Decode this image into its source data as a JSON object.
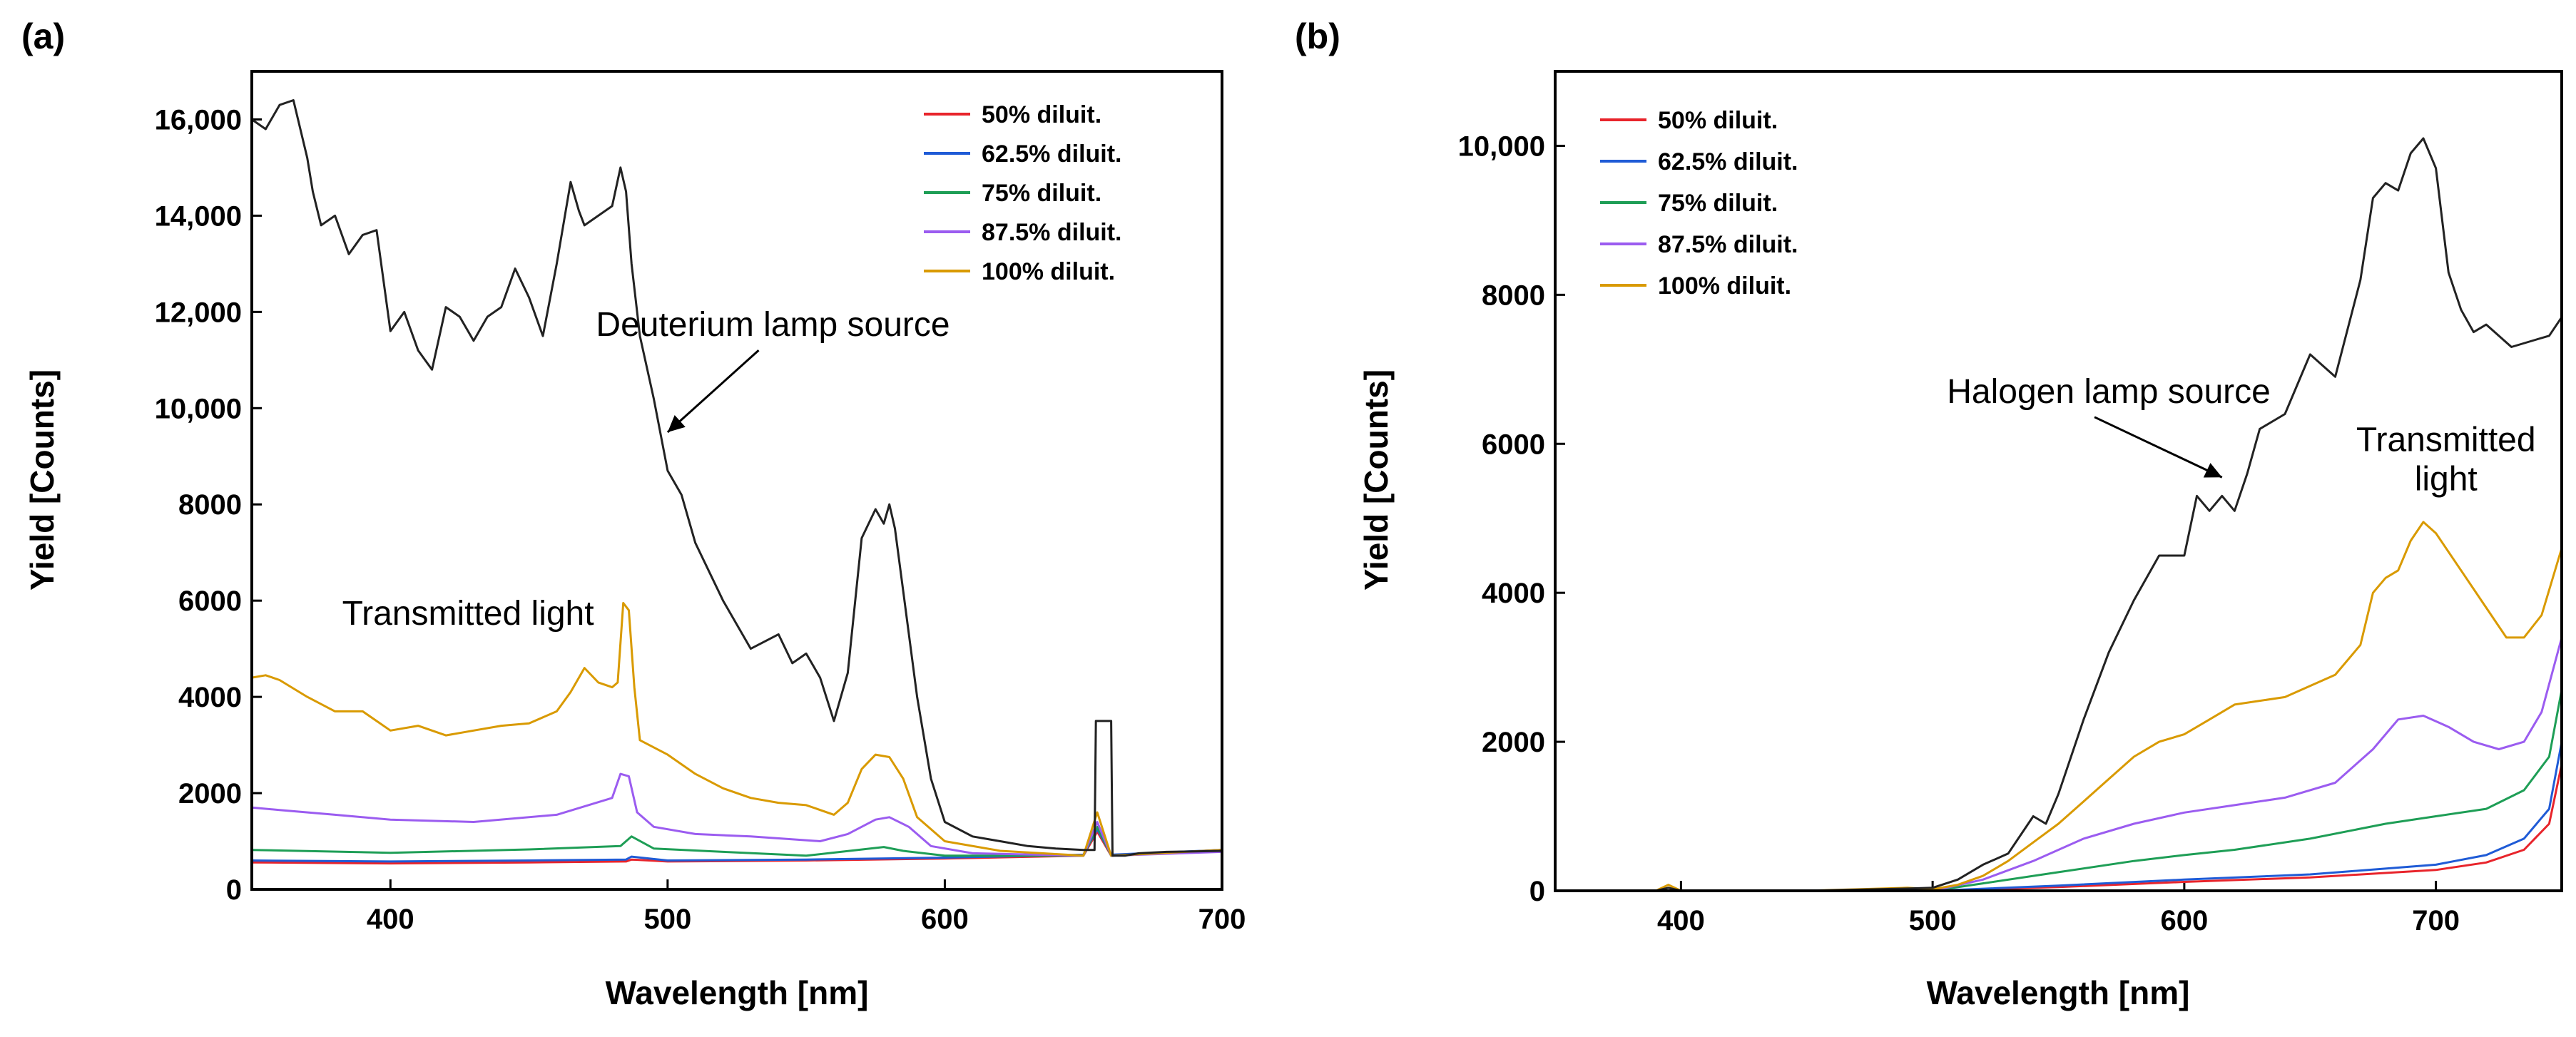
{
  "chart_data": [
    {
      "panel": "(a)",
      "type": "line",
      "xlabel": "Wavelength [nm]",
      "ylabel": "Yield [Counts]",
      "xlim": [
        350,
        700
      ],
      "ylim": [
        0,
        17000
      ],
      "xticks": [
        400,
        500,
        600,
        700
      ],
      "xtick_labels": [
        "400",
        "500",
        "600",
        "700"
      ],
      "yticks": [
        0,
        2000,
        4000,
        6000,
        8000,
        10000,
        12000,
        14000,
        16000
      ],
      "ytick_labels": [
        "0",
        "2000",
        "4000",
        "6000",
        "8000",
        "10,000",
        "12,000",
        "14,000",
        "16,000"
      ],
      "legend": {
        "position": "top-right"
      },
      "annotations": [
        {
          "lines": [
            "Deuterium lamp source"
          ],
          "x": 538,
          "y": 11500,
          "anchor": "middle",
          "arrow_to": [
            500,
            9500
          ]
        },
        {
          "lines": [
            "Transmitted light"
          ],
          "x": 428,
          "y": 5500,
          "anchor": "middle"
        }
      ],
      "series": [
        {
          "name": "50% diluit.",
          "color": "#e8242b",
          "legend": true,
          "x": [
            350,
            400,
            450,
            485,
            487,
            500,
            550,
            600,
            650,
            655,
            660,
            700
          ],
          "y": [
            560,
            540,
            560,
            580,
            620,
            580,
            600,
            640,
            700,
            1200,
            700,
            820
          ]
        },
        {
          "name": "62.5% diluit.",
          "color": "#1f5bd6",
          "legend": true,
          "x": [
            350,
            400,
            450,
            485,
            487,
            500,
            550,
            600,
            650,
            655,
            660,
            700
          ],
          "y": [
            600,
            580,
            600,
            620,
            680,
            600,
            620,
            660,
            720,
            1250,
            720,
            820
          ]
        },
        {
          "name": "75% diluit.",
          "color": "#1e9e56",
          "legend": true,
          "x": [
            350,
            400,
            450,
            483,
            487,
            495,
            520,
            550,
            578,
            585,
            600,
            650,
            655,
            660,
            700
          ],
          "y": [
            820,
            760,
            830,
            900,
            1100,
            850,
            780,
            700,
            880,
            800,
            700,
            700,
            1300,
            700,
            800
          ]
        },
        {
          "name": "87.5% diluit.",
          "color": "#9b5cf0",
          "legend": true,
          "x": [
            350,
            360,
            380,
            400,
            430,
            460,
            480,
            483,
            486,
            489,
            495,
            510,
            530,
            555,
            565,
            575,
            580,
            587,
            595,
            610,
            650,
            655,
            660,
            700
          ],
          "y": [
            1700,
            1650,
            1550,
            1450,
            1400,
            1550,
            1900,
            2400,
            2350,
            1600,
            1300,
            1150,
            1100,
            1000,
            1150,
            1450,
            1500,
            1300,
            900,
            750,
            700,
            1400,
            700,
            780
          ]
        },
        {
          "name": "100% diluit.",
          "color": "#d99a00",
          "legend": true,
          "x": [
            350,
            355,
            360,
            370,
            380,
            390,
            400,
            410,
            420,
            430,
            440,
            450,
            460,
            465,
            470,
            475,
            480,
            482,
            484,
            486,
            488,
            490,
            500,
            510,
            520,
            530,
            540,
            550,
            560,
            565,
            570,
            575,
            580,
            585,
            590,
            600,
            620,
            650,
            655,
            660,
            700
          ],
          "y": [
            4400,
            4450,
            4350,
            4000,
            3700,
            3700,
            3300,
            3400,
            3200,
            3300,
            3400,
            3450,
            3700,
            4100,
            4600,
            4300,
            4200,
            4300,
            5950,
            5800,
            4200,
            3100,
            2800,
            2400,
            2100,
            1900,
            1800,
            1750,
            1550,
            1800,
            2500,
            2800,
            2750,
            2300,
            1500,
            1000,
            800,
            700,
            1600,
            700,
            820
          ]
        },
        {
          "name": "Deuterium lamp",
          "color": "#222222",
          "legend": false,
          "x": [
            350,
            355,
            360,
            365,
            370,
            372,
            375,
            380,
            385,
            390,
            395,
            400,
            405,
            410,
            415,
            420,
            425,
            430,
            435,
            440,
            445,
            450,
            455,
            460,
            465,
            468,
            470,
            475,
            480,
            483,
            485,
            487,
            490,
            495,
            500,
            505,
            510,
            520,
            530,
            540,
            545,
            550,
            555,
            560,
            565,
            570,
            575,
            578,
            580,
            582,
            585,
            590,
            595,
            600,
            610,
            620,
            630,
            640,
            650,
            654,
            654.5,
            660,
            660.5,
            665,
            670,
            680,
            690,
            700
          ],
          "y": [
            16000,
            15800,
            16300,
            16400,
            15200,
            14500,
            13800,
            14000,
            13200,
            13600,
            13700,
            11600,
            12000,
            11200,
            10800,
            12100,
            11900,
            11400,
            11900,
            12100,
            12900,
            12300,
            11500,
            13000,
            14700,
            14100,
            13800,
            14000,
            14200,
            15000,
            14500,
            13000,
            11500,
            10200,
            8700,
            8200,
            7200,
            6000,
            5000,
            5300,
            4700,
            4900,
            4400,
            3500,
            4500,
            7300,
            7900,
            7600,
            8000,
            7500,
            6200,
            4000,
            2300,
            1400,
            1100,
            1000,
            900,
            850,
            820,
            820,
            3500,
            3500,
            700,
            700,
            750,
            780,
            790,
            800
          ]
        }
      ]
    },
    {
      "panel": "(b)",
      "type": "line",
      "xlabel": "Wavelength [nm]",
      "ylabel": "Yield [Counts]",
      "xlim": [
        350,
        750
      ],
      "ylim": [
        0,
        11000
      ],
      "xticks": [
        400,
        500,
        600,
        700
      ],
      "xtick_labels": [
        "400",
        "500",
        "600",
        "700"
      ],
      "yticks": [
        0,
        2000,
        4000,
        6000,
        8000,
        10000
      ],
      "ytick_labels": [
        "0",
        "2000",
        "4000",
        "6000",
        "8000",
        "10,000"
      ],
      "legend": {
        "position": "top-left"
      },
      "annotations": [
        {
          "lines": [
            "Halogen lamp source"
          ],
          "x": 570,
          "y": 6550,
          "anchor": "middle",
          "arrow_to": [
            615,
            5550
          ]
        },
        {
          "lines": [
            "Transmitted",
            "light"
          ],
          "x": 704,
          "y": 5900,
          "anchor": "middle"
        }
      ],
      "series": [
        {
          "name": "50% diluit.",
          "color": "#e8242b",
          "legend": true,
          "x": [
            350,
            400,
            450,
            500,
            550,
            600,
            650,
            700,
            720,
            735,
            745,
            750
          ],
          "y": [
            0,
            0,
            0,
            0,
            50,
            120,
            180,
            280,
            380,
            550,
            900,
            1700
          ]
        },
        {
          "name": "62.5% diluit.",
          "color": "#1f5bd6",
          "legend": true,
          "x": [
            350,
            400,
            450,
            500,
            550,
            600,
            650,
            700,
            720,
            735,
            745,
            750
          ],
          "y": [
            0,
            0,
            0,
            0,
            70,
            150,
            220,
            350,
            480,
            700,
            1100,
            2000
          ]
        },
        {
          "name": "75% diluit.",
          "color": "#1e9e56",
          "legend": true,
          "x": [
            350,
            400,
            450,
            500,
            520,
            550,
            580,
            600,
            620,
            650,
            680,
            700,
            720,
            735,
            745,
            750
          ],
          "y": [
            0,
            0,
            0,
            0,
            100,
            250,
            400,
            480,
            550,
            700,
            900,
            1000,
            1100,
            1350,
            1800,
            2700
          ]
        },
        {
          "name": "87.5% diluit.",
          "color": "#9b5cf0",
          "legend": true,
          "x": [
            350,
            400,
            450,
            500,
            520,
            540,
            560,
            580,
            600,
            620,
            640,
            660,
            675,
            685,
            695,
            705,
            715,
            725,
            735,
            742,
            750
          ],
          "y": [
            0,
            0,
            0,
            0,
            150,
            400,
            700,
            900,
            1050,
            1150,
            1250,
            1450,
            1900,
            2300,
            2350,
            2200,
            2000,
            1900,
            2000,
            2400,
            3400
          ]
        },
        {
          "name": "100% diluit.",
          "color": "#d99a00",
          "legend": true,
          "x": [
            350,
            390,
            395,
            400,
            450,
            490,
            500,
            510,
            520,
            530,
            540,
            550,
            560,
            570,
            580,
            590,
            600,
            610,
            620,
            640,
            660,
            670,
            675,
            680,
            685,
            690,
            695,
            700,
            710,
            720,
            728,
            735,
            742,
            750
          ],
          "y": [
            0,
            0,
            80,
            0,
            0,
            40,
            20,
            80,
            200,
            400,
            650,
            900,
            1200,
            1500,
            1800,
            2000,
            2100,
            2300,
            2500,
            2600,
            2900,
            3300,
            4000,
            4200,
            4300,
            4700,
            4950,
            4800,
            4300,
            3800,
            3400,
            3400,
            3700,
            4600
          ]
        },
        {
          "name": "Halogen lamp",
          "color": "#222222",
          "legend": false,
          "x": [
            350,
            390,
            395,
            400,
            450,
            490,
            500,
            510,
            520,
            530,
            540,
            545,
            550,
            560,
            570,
            580,
            590,
            600,
            605,
            610,
            615,
            620,
            625,
            630,
            640,
            650,
            660,
            670,
            675,
            680,
            685,
            690,
            695,
            700,
            705,
            710,
            715,
            720,
            730,
            740,
            745,
            750
          ],
          "y": [
            0,
            0,
            40,
            0,
            0,
            30,
            40,
            150,
            350,
            500,
            1000,
            900,
            1300,
            2300,
            3200,
            3900,
            4500,
            4500,
            5300,
            5100,
            5300,
            5100,
            5600,
            6200,
            6400,
            7200,
            6900,
            8200,
            9300,
            9500,
            9400,
            9900,
            10100,
            9700,
            8300,
            7800,
            7500,
            7600,
            7300,
            7400,
            7450,
            7700
          ]
        }
      ]
    }
  ]
}
